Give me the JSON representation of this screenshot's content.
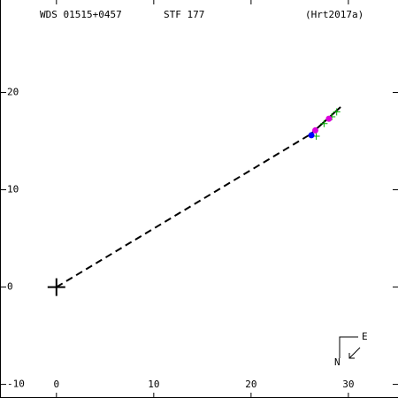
{
  "chart_data": {
    "type": "scatter",
    "title": "WDS 01515+0457",
    "subtitle": "STF 177",
    "reference": "(Hrt2017a)",
    "xlim": [
      -5.8,
      35.1
    ],
    "ylim": [
      -11.4,
      29.5
    ],
    "xticks": [
      0,
      10,
      20,
      30
    ],
    "yticks": [
      -10,
      0,
      10,
      20
    ],
    "compass": [
      "E",
      "N"
    ],
    "series": [
      {
        "marker": "cross",
        "color": "#000000",
        "x": [
          0
        ],
        "values": [
          0
        ]
      },
      {
        "marker": "dashed-line",
        "color": "#000000",
        "x": [
          0,
          26.1
        ],
        "values": [
          0,
          15.7
        ]
      },
      {
        "marker": "line",
        "color": "#000000",
        "x": [
          26.1,
          29.2
        ],
        "values": [
          15.7,
          18.5
        ]
      },
      {
        "marker": "plus",
        "color": "#00aa00",
        "x": [
          26.7,
          28.3,
          28.8,
          27.5
        ],
        "values": [
          15.5,
          17.5,
          18.0,
          16.8
        ]
      },
      {
        "marker": "circle",
        "color": "#dd00dd",
        "x": [
          26.6,
          28.0
        ],
        "values": [
          16.1,
          17.3
        ]
      },
      {
        "marker": "circle",
        "color": "#0000ff",
        "x": [
          26.2
        ],
        "values": [
          15.6
        ]
      }
    ]
  }
}
